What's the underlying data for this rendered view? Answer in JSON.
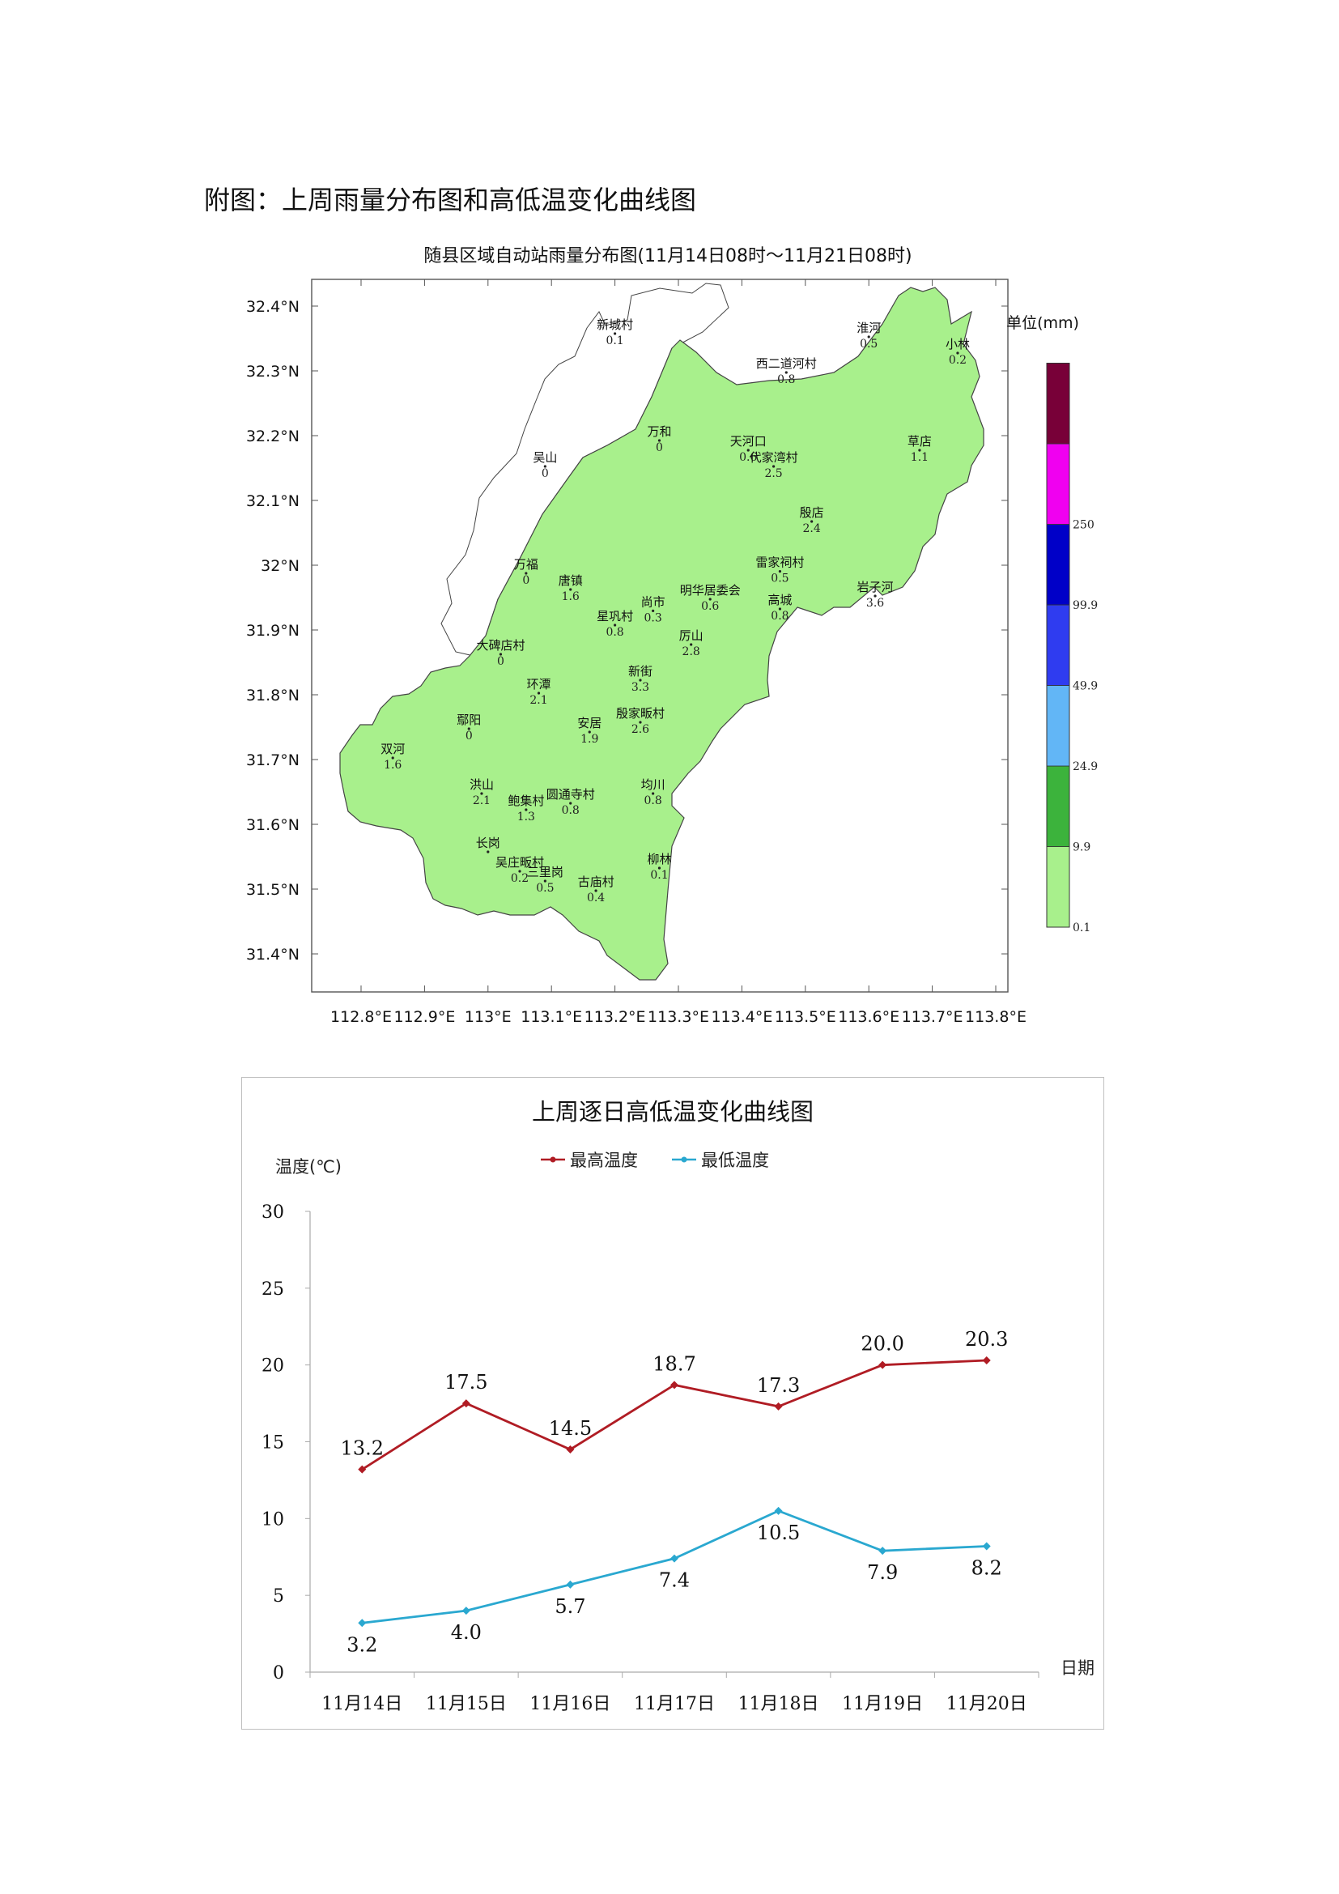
{
  "heading": "附图：上周雨量分布图和高低温变化曲线图",
  "rain_map": {
    "title": "随县区域自动站雨量分布图(11月14日08时～11月21日08时)",
    "lon_ticks": [
      "112.8°E",
      "112.9°E",
      "113°E",
      "113.1°E",
      "113.2°E",
      "113.3°E",
      "113.4°E",
      "113.5°E",
      "113.6°E",
      "113.7°E",
      "113.8°E"
    ],
    "lat_ticks": [
      "32.4°N",
      "32.3°N",
      "32.2°N",
      "32.1°N",
      "32°N",
      "31.9°N",
      "31.8°N",
      "31.7°N",
      "31.6°N",
      "31.5°N",
      "31.4°N"
    ],
    "legend_title": "单位(mm)",
    "legend_levels": [
      "0.1",
      "9.9",
      "24.9",
      "49.9",
      "99.9",
      "250"
    ],
    "legend_colors": [
      "#a8f08c",
      "#3cb33c",
      "#62b6f6",
      "#2f3cf0",
      "#0000c8",
      "#f000f0",
      "#780038"
    ],
    "fill_color": "#a8f08c",
    "stations": [
      {
        "name": "新城村",
        "value": "0.1",
        "lon": 113.2,
        "lat": 32.365
      },
      {
        "name": "淮河",
        "value": "0.5",
        "lon": 113.6,
        "lat": 32.36
      },
      {
        "name": "小林",
        "value": "0.2",
        "lon": 113.74,
        "lat": 32.335
      },
      {
        "name": "西二道河村",
        "value": "0.8",
        "lon": 113.47,
        "lat": 32.305
      },
      {
        "name": "万和",
        "value": "0",
        "lon": 113.27,
        "lat": 32.2
      },
      {
        "name": "天河口",
        "value": "0.6",
        "lon": 113.41,
        "lat": 32.185
      },
      {
        "name": "草店",
        "value": "1.1",
        "lon": 113.68,
        "lat": 32.185
      },
      {
        "name": "代家湾村",
        "value": "2.5",
        "lon": 113.45,
        "lat": 32.16
      },
      {
        "name": "吴山",
        "value": "0",
        "lon": 113.09,
        "lat": 32.16
      },
      {
        "name": "殷店",
        "value": "2.4",
        "lon": 113.51,
        "lat": 32.075
      },
      {
        "name": "万福",
        "value": "0",
        "lon": 113.06,
        "lat": 31.995
      },
      {
        "name": "雷家祠村",
        "value": "0.5",
        "lon": 113.46,
        "lat": 31.998
      },
      {
        "name": "唐镇",
        "value": "1.6",
        "lon": 113.13,
        "lat": 31.97
      },
      {
        "name": "尚市",
        "value": "0.3",
        "lon": 113.26,
        "lat": 31.937
      },
      {
        "name": "明华居委会",
        "value": "0.6",
        "lon": 113.35,
        "lat": 31.955
      },
      {
        "name": "岩子河",
        "value": "3.6",
        "lon": 113.61,
        "lat": 31.96
      },
      {
        "name": "高城",
        "value": "0.8",
        "lon": 113.46,
        "lat": 31.94
      },
      {
        "name": "星巩村",
        "value": "0.8",
        "lon": 113.2,
        "lat": 31.915
      },
      {
        "name": "大碑店村",
        "value": "0",
        "lon": 113.02,
        "lat": 31.87
      },
      {
        "name": "厉山",
        "value": "2.8",
        "lon": 113.32,
        "lat": 31.885
      },
      {
        "name": "新街",
        "value": "3.3",
        "lon": 113.24,
        "lat": 31.83
      },
      {
        "name": "环潭",
        "value": "2.1",
        "lon": 113.08,
        "lat": 31.81
      },
      {
        "name": "殷家畈村",
        "value": "2.6",
        "lon": 113.24,
        "lat": 31.765
      },
      {
        "name": "鄢阳",
        "value": "0",
        "lon": 112.97,
        "lat": 31.755
      },
      {
        "name": "安居",
        "value": "1.9",
        "lon": 113.16,
        "lat": 31.75
      },
      {
        "name": "双河",
        "value": "1.6",
        "lon": 112.85,
        "lat": 31.71
      },
      {
        "name": "洪山",
        "value": "2.1",
        "lon": 112.99,
        "lat": 31.655
      },
      {
        "name": "均川",
        "value": "0.8",
        "lon": 113.26,
        "lat": 31.655
      },
      {
        "name": "圆通寺村",
        "value": "0.8",
        "lon": 113.13,
        "lat": 31.64
      },
      {
        "name": "鲍集村",
        "value": "1.3",
        "lon": 113.06,
        "lat": 31.63
      },
      {
        "name": "长岗",
        "value": "",
        "lon": 113.0,
        "lat": 31.565
      },
      {
        "name": "柳林",
        "value": "0.1",
        "lon": 113.27,
        "lat": 31.54
      },
      {
        "name": "吴庄畈村",
        "value": "0.2",
        "lon": 113.05,
        "lat": 31.535
      },
      {
        "name": "三里岗",
        "value": "0.5",
        "lon": 113.09,
        "lat": 31.52
      },
      {
        "name": "古庙村",
        "value": "0.4",
        "lon": 113.17,
        "lat": 31.505
      }
    ]
  },
  "temp_chart": {
    "chart_data": {
      "type": "line",
      "title": "上周逐日高低温变化曲线图",
      "ylabel": "温度(℃)",
      "xlabel": "日期",
      "ylim": [
        0,
        30
      ],
      "yticks": [
        "0",
        "5",
        "10",
        "15",
        "20",
        "25",
        "30"
      ],
      "categories": [
        "11月14日",
        "11月15日",
        "11月16日",
        "11月17日",
        "11月18日",
        "11月19日",
        "11月20日"
      ],
      "legend_position": "top-center",
      "series": [
        {
          "name": "最高温度",
          "color": "#b01c24",
          "values": [
            13.2,
            17.5,
            14.5,
            18.7,
            17.3,
            20.0,
            20.3
          ],
          "labels": [
            "13.2",
            "17.5",
            "14.5",
            "18.7",
            "17.3",
            "20.0",
            "20.3"
          ]
        },
        {
          "name": "最低温度",
          "color": "#2aa8d0",
          "values": [
            3.2,
            4.0,
            5.7,
            7.4,
            10.5,
            7.9,
            8.2
          ],
          "labels": [
            "3.2",
            "4.0",
            "5.7",
            "7.4",
            "10.5",
            "7.9",
            "8.2"
          ]
        }
      ]
    }
  }
}
